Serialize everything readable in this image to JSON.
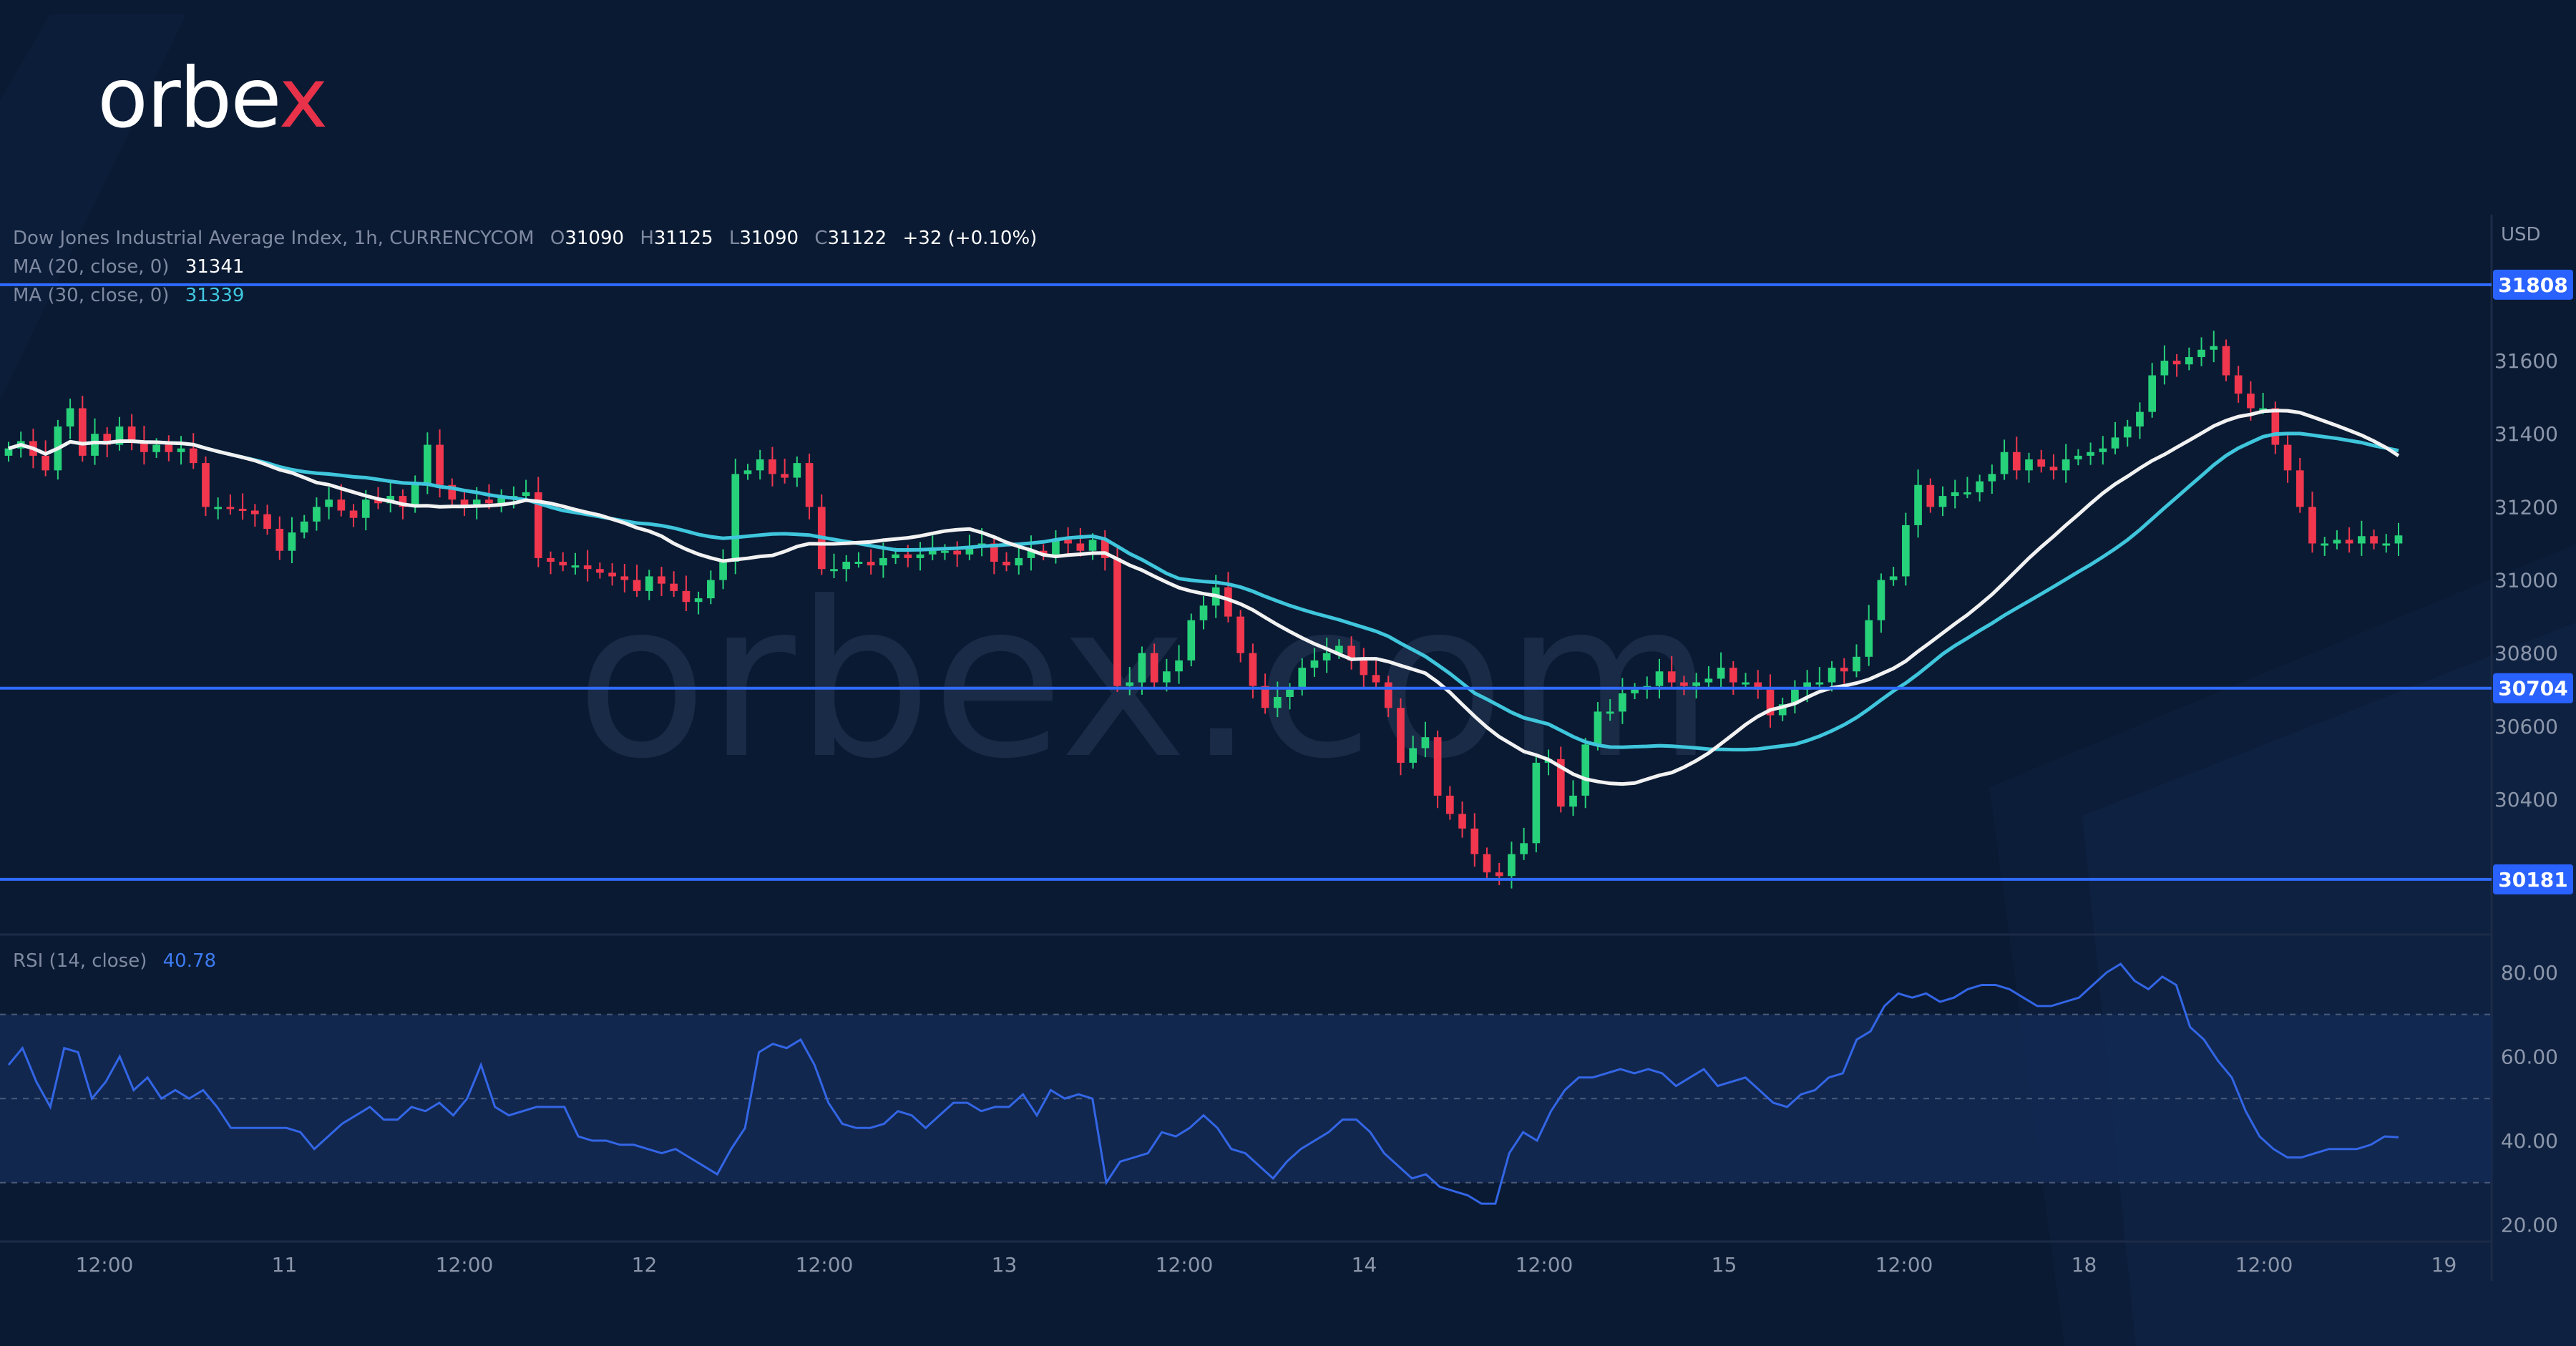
{
  "brand": {
    "name_part1": "orbe",
    "name_part2": "x",
    "watermark": "orbex.com"
  },
  "legend": {
    "symbol": "Dow Jones Industrial Average Index, 1h, CURRENCYCOM",
    "o_label": "O",
    "o_value": "31090",
    "h_label": "H",
    "h_value": "31125",
    "l_label": "L",
    "l_value": "31090",
    "c_label": "C",
    "c_value": "31122",
    "change": "+32 (+0.10%)",
    "ma20_label": "MA (20, close, 0)",
    "ma20_value": "31341",
    "ma30_label": "MA (30, close, 0)",
    "ma30_value": "31339",
    "rsi_label": "RSI (14, close)",
    "rsi_value": "40.78"
  },
  "colors": {
    "background": "#0a1a33",
    "bull": "#26d17a",
    "bear": "#f0374e",
    "ma20": "#f2f2f2",
    "ma30": "#3fc6dc",
    "rsi": "#3366e6",
    "hline": "#2f6bff",
    "axis_text": "#8c96aa"
  },
  "chart_data": [
    {
      "type": "candlestick",
      "title": "Dow Jones Industrial Average Index, 1h, CURRENCYCOM",
      "currency": "USD",
      "x_ticks": [
        "12:00",
        "11",
        "12:00",
        "12",
        "12:00",
        "13",
        "12:00",
        "14",
        "12:00",
        "15",
        "12:00",
        "18",
        "12:00",
        "19"
      ],
      "y_ticks": [
        31600,
        31400,
        31200,
        31000,
        30800,
        30600,
        30400
      ],
      "ylim": [
        30030,
        31980
      ],
      "horizontal_levels": [
        31808,
        30704,
        30181
      ],
      "series": [
        {
          "name": "MA (20, close, 0)",
          "last": 31341
        },
        {
          "name": "MA (30, close, 0)",
          "last": 31339
        }
      ],
      "closes": [
        31360,
        31380,
        31340,
        31300,
        31420,
        31470,
        31340,
        31400,
        31370,
        31420,
        31380,
        31350,
        31370,
        31350,
        31360,
        31320,
        31200,
        31200,
        31195,
        31190,
        31180,
        31140,
        31080,
        31130,
        31160,
        31200,
        31220,
        31190,
        31170,
        31220,
        31210,
        31230,
        31200,
        31260,
        31370,
        31260,
        31220,
        31200,
        31220,
        31210,
        31230,
        31230,
        31240,
        31060,
        31050,
        31040,
        31040,
        31030,
        31020,
        31010,
        31000,
        30970,
        31010,
        30990,
        30970,
        30940,
        30950,
        31000,
        31050,
        31290,
        31300,
        31330,
        31290,
        31280,
        31320,
        31200,
        31030,
        31030,
        31050,
        31050,
        31040,
        31060,
        31070,
        31060,
        31070,
        31080,
        31080,
        31070,
        31090,
        31100,
        31050,
        31040,
        31060,
        31080,
        31070,
        31110,
        31100,
        31080,
        31110,
        31060,
        30710,
        30720,
        30800,
        30720,
        30750,
        30780,
        30890,
        30930,
        30980,
        30900,
        30800,
        30710,
        30650,
        30680,
        30700,
        30760,
        30780,
        30800,
        30820,
        30780,
        30740,
        30720,
        30650,
        30500,
        30540,
        30570,
        30410,
        30360,
        30320,
        30250,
        30200,
        30190,
        30250,
        30280,
        30500,
        30510,
        30380,
        30410,
        30550,
        30640,
        30640,
        30690,
        30700,
        30710,
        30750,
        30720,
        30710,
        30720,
        30730,
        30760,
        30720,
        30720,
        30700,
        30630,
        30660,
        30700,
        30720,
        30720,
        30760,
        30750,
        30790,
        30890,
        31000,
        31010,
        31150,
        31260,
        31200,
        31230,
        31240,
        31240,
        31270,
        31290,
        31350,
        31300,
        31330,
        31310,
        31300,
        31330,
        31340,
        31350,
        31360,
        31390,
        31420,
        31460,
        31560,
        31600,
        31590,
        31610,
        31630,
        31640,
        31560,
        31510,
        31470,
        31470,
        31370,
        31300,
        31200,
        31100,
        31100,
        31110,
        31100,
        31120,
        31100,
        31100,
        31122
      ],
      "bar_colors": "mixed bull/bear candles"
    },
    {
      "type": "line",
      "title": "RSI (14, close)",
      "y_ticks": [
        80.0,
        60.0,
        40.0,
        20.0
      ],
      "ylim": [
        16,
        89
      ],
      "band": [
        30,
        70
      ],
      "midline": 50,
      "last": 40.78,
      "values": [
        58,
        62,
        54,
        48,
        62,
        61,
        50,
        54,
        60,
        52,
        55,
        50,
        52,
        50,
        52,
        48,
        43,
        43,
        43,
        43,
        43,
        42,
        38,
        41,
        44,
        46,
        48,
        45,
        45,
        48,
        47,
        49,
        46,
        50,
        58,
        48,
        46,
        47,
        48,
        48,
        48,
        41,
        40,
        40,
        39,
        39,
        38,
        37,
        38,
        36,
        34,
        32,
        38,
        43,
        61,
        63,
        62,
        64,
        58,
        49,
        44,
        43,
        43,
        44,
        47,
        46,
        43,
        46,
        49,
        49,
        47,
        48,
        48,
        51,
        46,
        52,
        50,
        51,
        50,
        30,
        35,
        36,
        37,
        42,
        41,
        43,
        46,
        43,
        38,
        37,
        34,
        31,
        35,
        38,
        40,
        42,
        45,
        45,
        42,
        37,
        34,
        31,
        32,
        29,
        28,
        27,
        25,
        25,
        37,
        42,
        40,
        47,
        52,
        55,
        55,
        56,
        57,
        56,
        57,
        56,
        53,
        55,
        57,
        53,
        54,
        55,
        52,
        49,
        48,
        51,
        52,
        55,
        56,
        64,
        66,
        72,
        75,
        74,
        75,
        73,
        74,
        76,
        77,
        77,
        76,
        74,
        72,
        72,
        73,
        74,
        77,
        80,
        82,
        78,
        76,
        79,
        77,
        67,
        64,
        59,
        55,
        47,
        41,
        38,
        36,
        36,
        37,
        38,
        38,
        38,
        39,
        41,
        40.78
      ]
    }
  ]
}
